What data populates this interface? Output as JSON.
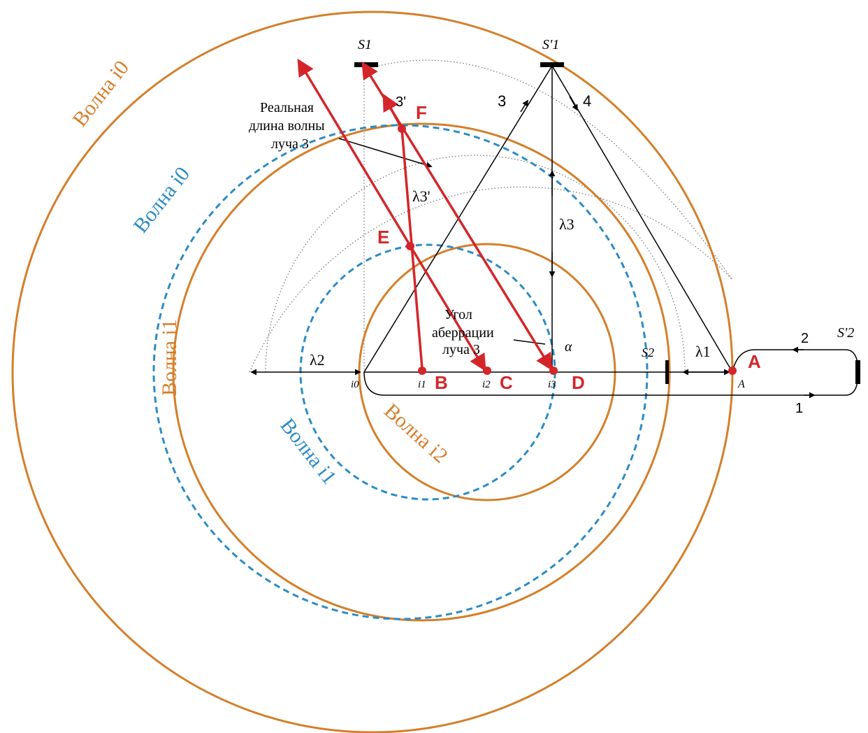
{
  "colors": {
    "orange": "#d47f2a",
    "blue": "#2b8cc4",
    "red": "#d4262a",
    "black": "#000000",
    "dotted": "#6e6e6e"
  },
  "labels": {
    "wave_i0_orange": "Волна i0",
    "wave_i0_blue": "Волна i0",
    "wave_i1_orange": "Волна i1",
    "wave_i1_blue": "Волна i1",
    "wave_i2_orange": "Волна i2",
    "real_wavelength_1": "Реальная",
    "real_wavelength_2": "длина волны",
    "real_wavelength_3": "луча 3",
    "aberration_1": "Угол",
    "aberration_2": "аберрации",
    "aberration_3": "луча 3",
    "point_A": "A",
    "point_B": "B",
    "point_C": "C",
    "point_D": "D",
    "point_E": "E",
    "point_F": "F",
    "mirror_S1": "S1",
    "mirror_S1_prime": "S'1",
    "mirror_S2": "S2",
    "mirror_S2_prime": "S'2",
    "lambda1": "λ1",
    "lambda2": "λ2",
    "lambda3": "λ3",
    "lambda3_prime": "λ3'",
    "ray_1": "1",
    "ray_2": "2",
    "ray_3": "3",
    "ray_3_prime": "3'",
    "ray_4": "4",
    "alpha": "α",
    "pos_i0": "i0",
    "pos_i1": "i1",
    "pos_i2": "i2",
    "pos_i3": "i3",
    "pos_A_small": "A"
  }
}
